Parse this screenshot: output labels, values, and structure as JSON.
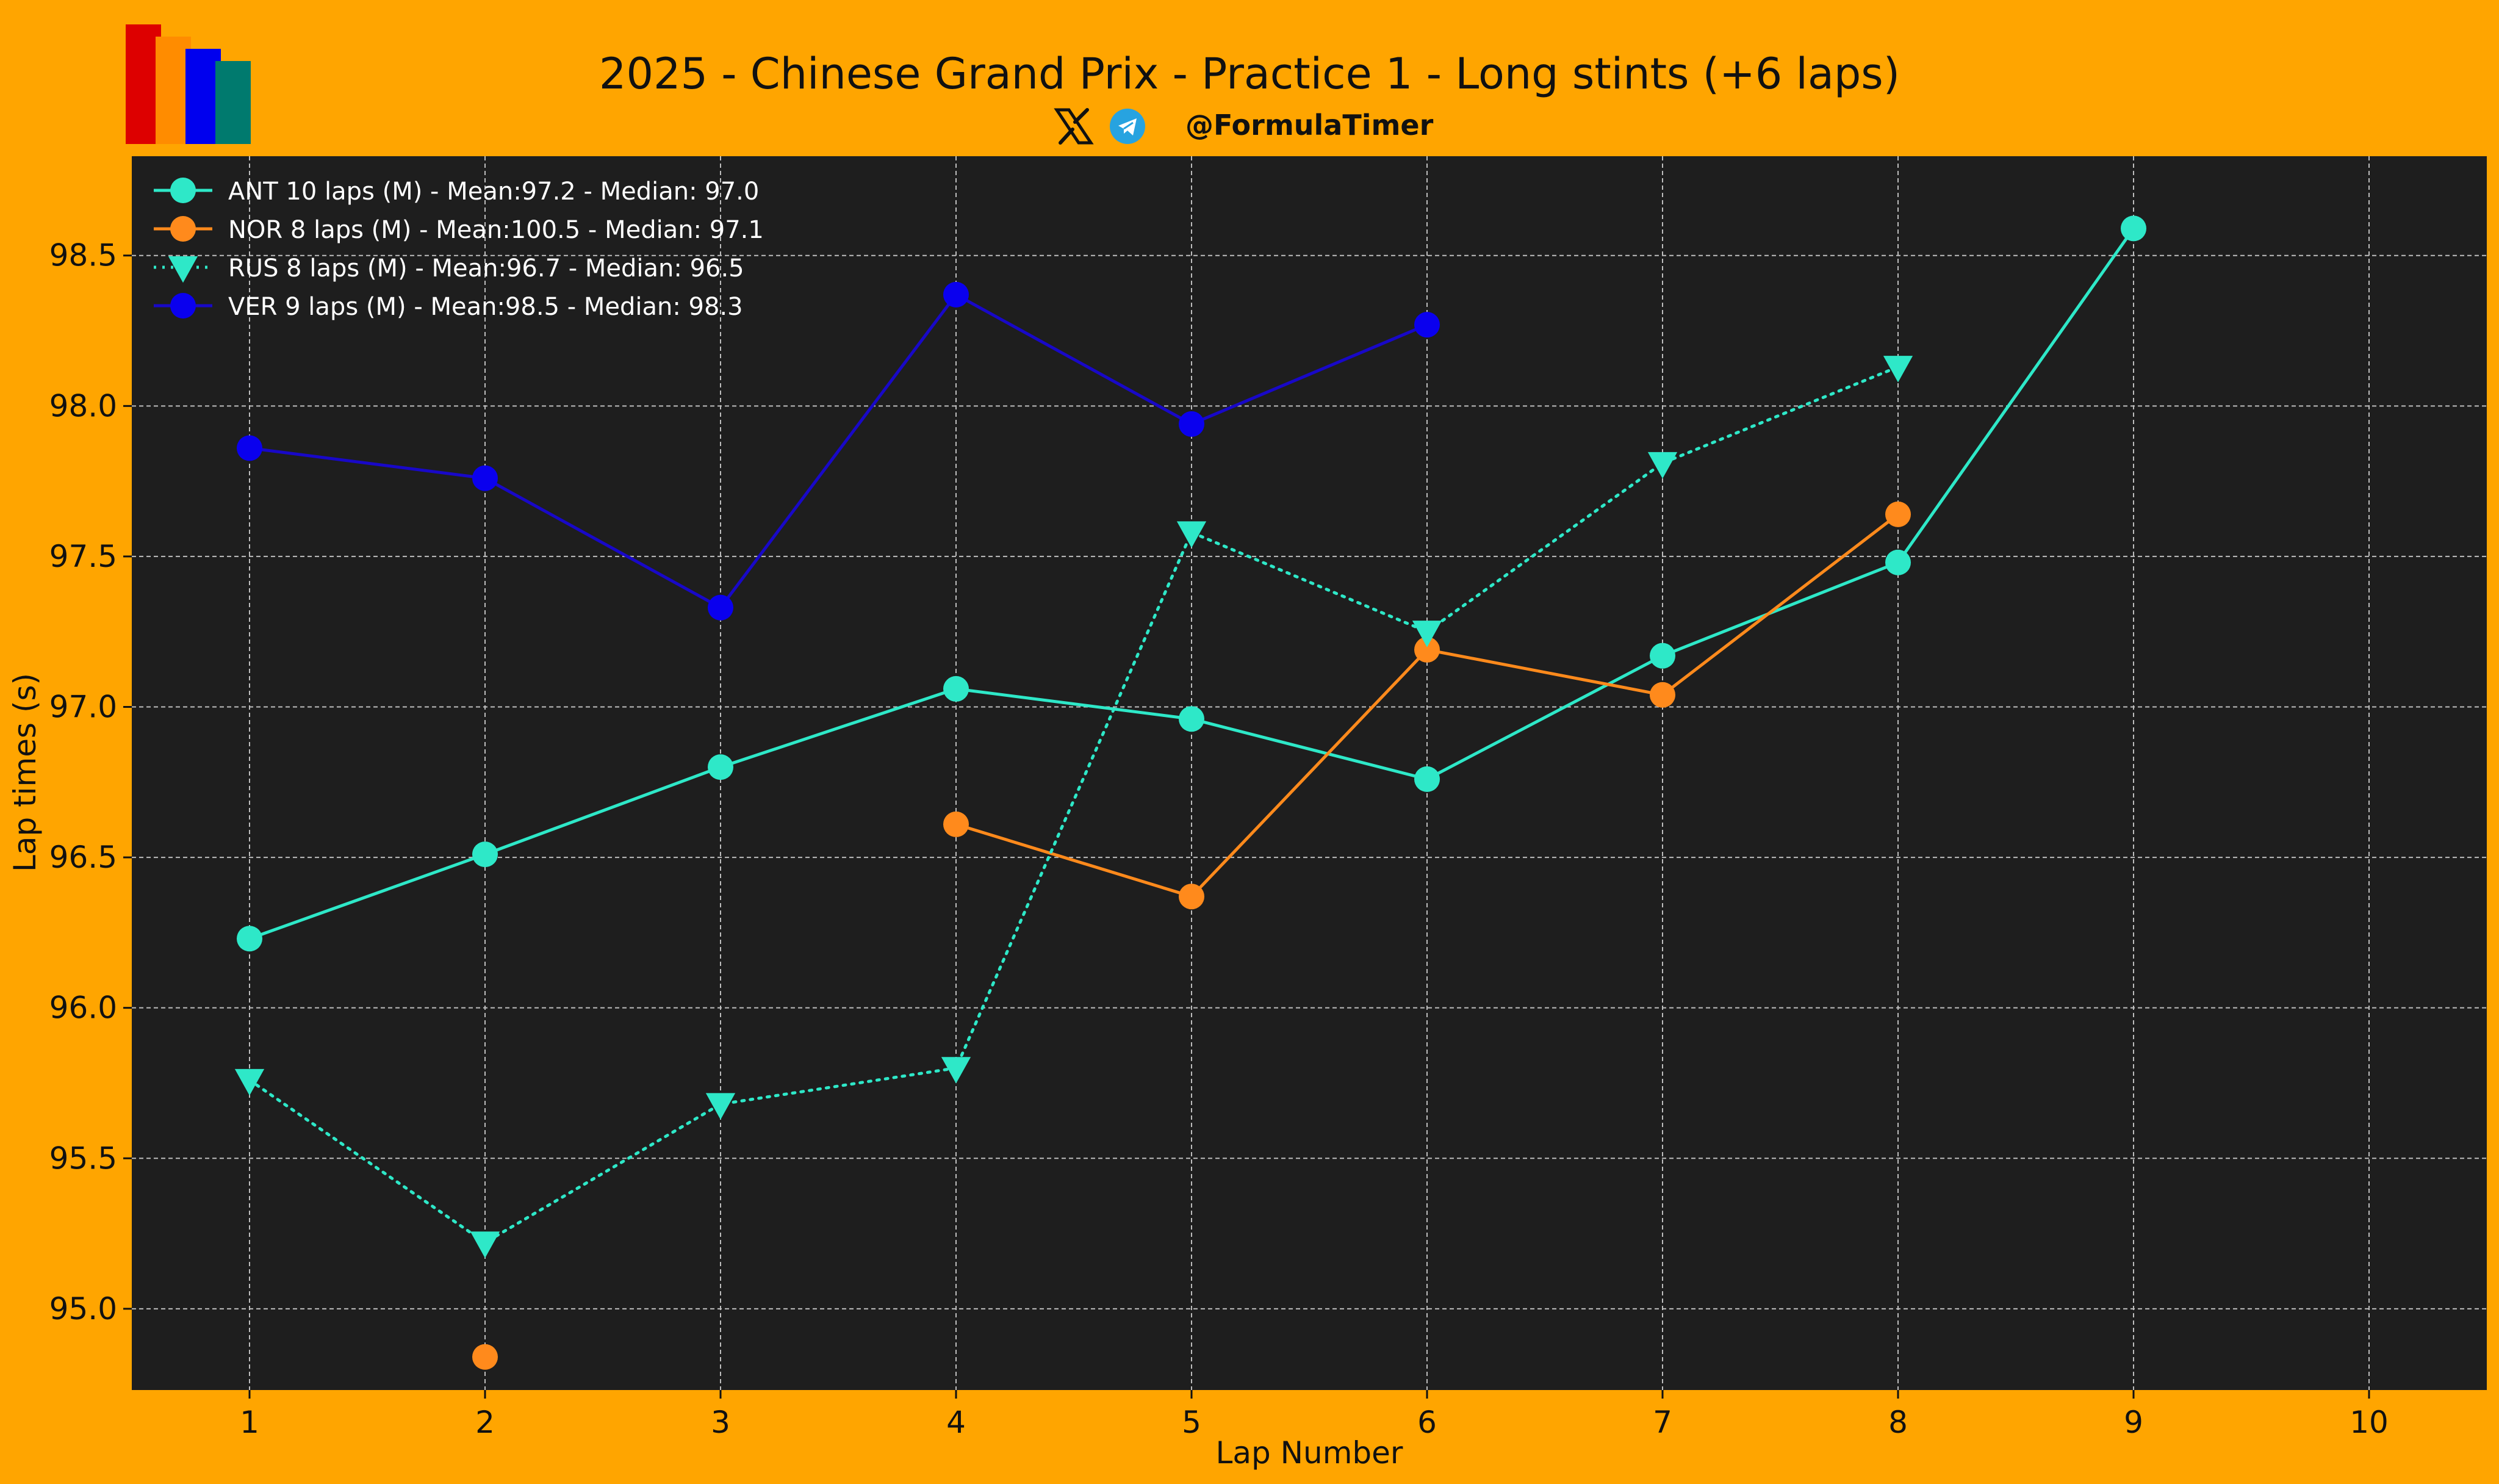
{
  "page": {
    "title": "2025 - Chinese Grand Prix - Practice 1 - Long stints (+6 laps)",
    "handle": "@FormulaTimer",
    "background_color": "#FFA500",
    "plot_background_color": "#1E1E1E",
    "logo_colors": [
      "#DD0000",
      "#FF8C00",
      "#0000EE",
      "#007A6E"
    ]
  },
  "social_icons": [
    "x-icon",
    "telegram-icon"
  ],
  "chart_data": {
    "type": "line",
    "title": "2025 - Chinese Grand Prix - Practice 1 - Long stints (+6 laps)",
    "xlabel": "Lap Number",
    "ylabel": "Lap times (s)",
    "xlim": [
      0.5,
      10.5
    ],
    "ylim": [
      94.73,
      98.83
    ],
    "xticks": [
      1,
      2,
      3,
      4,
      5,
      6,
      7,
      8,
      9,
      10
    ],
    "yticks": [
      95.0,
      95.5,
      96.0,
      96.5,
      97.0,
      97.5,
      98.0,
      98.5
    ],
    "ytick_labels": [
      "95.0",
      "95.5",
      "96.0",
      "96.5",
      "97.0",
      "97.5",
      "98.0",
      "98.5"
    ],
    "grid": true,
    "legend_position": "top-left",
    "series": [
      {
        "name": "ANT 10 laps (M) - Mean:97.2 - Median: 97.0",
        "color": "#2EE8C8",
        "line_style": "solid",
        "marker": "circle",
        "x": [
          1,
          2,
          3,
          4,
          5,
          6,
          7,
          8,
          9
        ],
        "y": [
          96.23,
          96.51,
          96.8,
          97.06,
          96.96,
          96.76,
          97.17,
          97.48,
          98.59
        ]
      },
      {
        "name": "NOR 8 laps (M) - Mean:100.5 - Median: 97.1",
        "color": "#FF8A1C",
        "line_style": "solid",
        "marker": "circle",
        "x": [
          2,
          4,
          5,
          6,
          7,
          8
        ],
        "y": [
          94.84,
          96.61,
          96.37,
          97.19,
          97.04,
          97.64
        ],
        "segments": [
          [
            1,
            2,
            3,
            4,
            5
          ]
        ]
      },
      {
        "name": "RUS 8 laps (M) - Mean:96.7 - Median: 96.5",
        "color": "#2EE8C8",
        "line_style": "dotted",
        "marker": "triangle-down",
        "x": [
          1,
          2,
          3,
          4,
          5,
          6,
          7,
          8
        ],
        "y": [
          95.76,
          95.22,
          95.68,
          95.8,
          97.58,
          97.25,
          97.81,
          98.13
        ]
      },
      {
        "name": "VER 9 laps (M) - Mean:98.5 - Median: 98.3",
        "color": "#0A00EE",
        "line_color": "#1808C8",
        "line_style": "solid",
        "marker": "circle",
        "x": [
          1,
          2,
          3,
          4,
          5,
          6
        ],
        "y": [
          97.86,
          97.76,
          97.33,
          98.37,
          97.94,
          98.27
        ]
      }
    ]
  }
}
